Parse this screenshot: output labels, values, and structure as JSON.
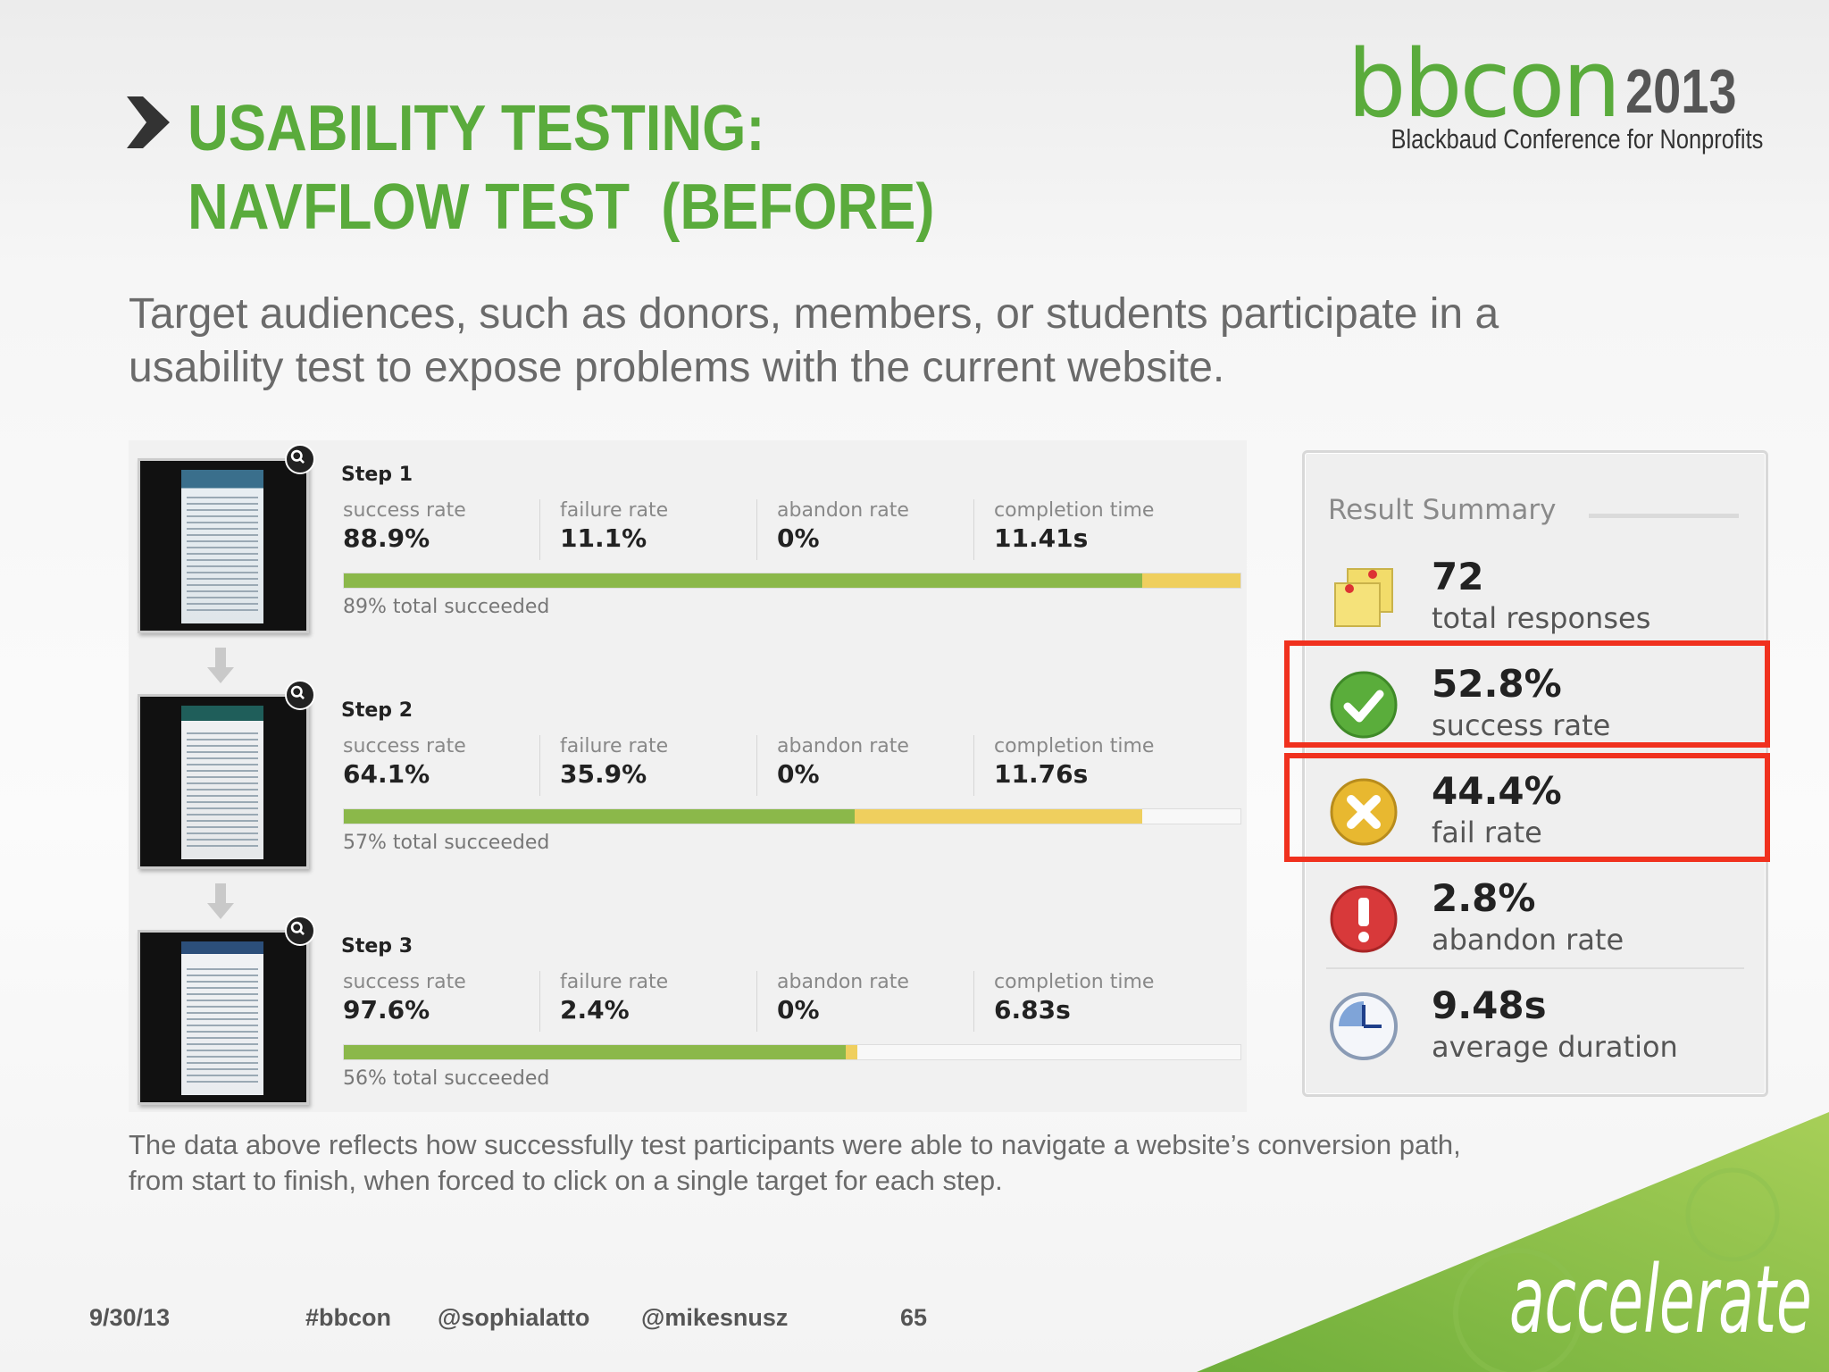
{
  "header": {
    "title_line1": "USABILITY TESTING:",
    "title_line2": "NAVFLOW TEST  (BEFORE)",
    "logo_brand": "bbcon",
    "logo_year": "2013",
    "logo_subtitle": "Blackbaud Conference for Nonprofits"
  },
  "intro": "Target audiences, such as donors, members, or students participate in a usability test to expose problems with the current website.",
  "steps": [
    {
      "label": "Step 1",
      "success_label": "success rate",
      "success": "88.9%",
      "failure_label": "failure rate",
      "failure": "11.1%",
      "abandon_label": "abandon rate",
      "abandon": "0%",
      "time_label": "completion time",
      "time": "11.41s",
      "green_fraction": 0.89,
      "yellow_fraction": 0.11,
      "caption": "89% total succeeded"
    },
    {
      "label": "Step 2",
      "success_label": "success rate",
      "success": "64.1%",
      "failure_label": "failure rate",
      "failure": "35.9%",
      "abandon_label": "abandon rate",
      "abandon": "0%",
      "time_label": "completion time",
      "time": "11.76s",
      "green_fraction": 0.57,
      "yellow_fraction": 0.32,
      "caption": "57% total succeeded"
    },
    {
      "label": "Step 3",
      "success_label": "success rate",
      "success": "97.6%",
      "failure_label": "failure rate",
      "failure": "2.4%",
      "abandon_label": "abandon rate",
      "abandon": "0%",
      "time_label": "completion time",
      "time": "6.83s",
      "green_fraction": 0.56,
      "yellow_fraction": 0.013,
      "caption": "56% total succeeded"
    }
  ],
  "summary": {
    "title": "Result Summary",
    "rows": [
      {
        "value": "72",
        "caption": "total responses",
        "icon": "sticky-notes-icon"
      },
      {
        "value": "52.8%",
        "caption": "success rate",
        "icon": "checkmark-icon"
      },
      {
        "value": "44.4%",
        "caption": "fail rate",
        "icon": "x-icon"
      },
      {
        "value": "2.8%",
        "caption": "abandon rate",
        "icon": "exclamation-icon"
      },
      {
        "value": "9.48s",
        "caption": "average duration",
        "icon": "clock-icon"
      }
    ]
  },
  "note": "The data above reflects how successfully test participants were able to navigate a website’s conversion path, from start to finish, when forced to click on a single target for each step.",
  "footer": {
    "date": "9/30/13",
    "hashtag": "#bbcon",
    "handle1": "@sophialatto",
    "handle2": "@mikesnusz",
    "page": "65",
    "brand": "accelerate"
  },
  "colors": {
    "accent_green": "#5aab3c",
    "bar_green": "#8bb84a",
    "bar_yellow": "#efcf5e",
    "highlight_red": "#f0311e"
  }
}
